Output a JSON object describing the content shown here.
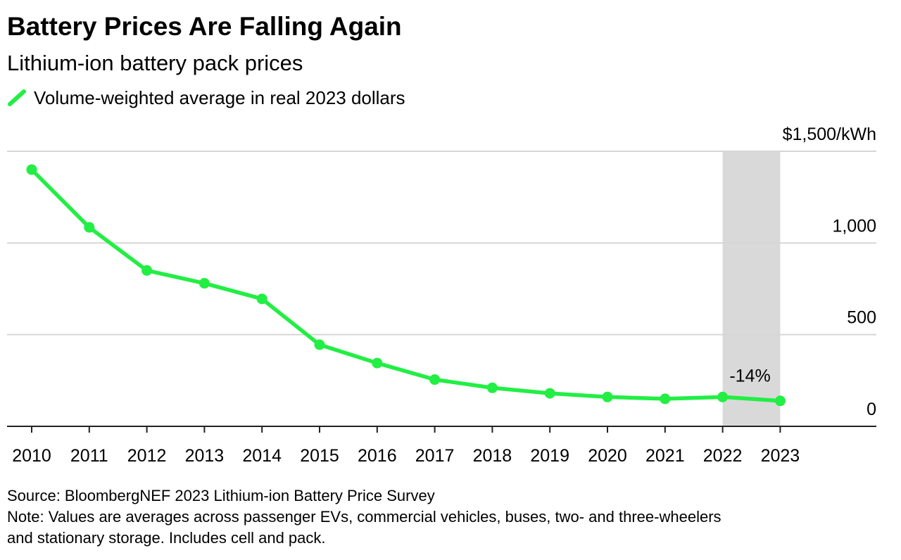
{
  "title": "Battery Prices Are Falling Again",
  "subtitle": "Lithium-ion battery pack prices",
  "legend": {
    "label": "Volume-weighted average in real 2023 dollars",
    "icon": "green-line-swatch"
  },
  "colors": {
    "series": "#22ee44",
    "highlight_band": "#d9d9d9",
    "grid": "#d6d6d6",
    "axis": "#222222",
    "text": "#000000"
  },
  "chart_data": {
    "type": "line",
    "title": "Battery Prices Are Falling Again",
    "subtitle": "Lithium-ion battery pack prices",
    "xlabel": "",
    "ylabel": "",
    "x": [
      2010,
      2011,
      2012,
      2013,
      2014,
      2015,
      2016,
      2017,
      2018,
      2019,
      2020,
      2021,
      2022,
      2023
    ],
    "series": [
      {
        "name": "Volume-weighted average in real 2023 dollars",
        "values": [
          1400,
          1085,
          850,
          780,
          695,
          445,
          345,
          255,
          210,
          180,
          160,
          150,
          160,
          139
        ]
      }
    ],
    "ylim": [
      0,
      1500
    ],
    "xlim": [
      2010,
      2023
    ],
    "yticks": [
      0,
      500,
      1000,
      1500
    ],
    "ytick_labels": [
      "0",
      "500",
      "1,000",
      "$1,500/kWh"
    ],
    "xtick_labels": [
      "2010",
      "2011",
      "2012",
      "2013",
      "2014",
      "2015",
      "2016",
      "2017",
      "2018",
      "2019",
      "2020",
      "2021",
      "2022",
      "2023"
    ],
    "highlight": {
      "from": 2022,
      "to": 2023
    },
    "annotation": {
      "text": "-14%",
      "x": 2022.5
    },
    "grid": true,
    "y_axis_side": "right",
    "legend_position": "top-left"
  },
  "footer": {
    "source": "Source: BloombergNEF 2023 Lithium-ion Battery Price Survey",
    "note_line1": "Note: Values are averages across passenger EVs, commercial vehicles, buses, two- and three-wheelers",
    "note_line2": "and stationary storage. Includes cell and pack."
  }
}
